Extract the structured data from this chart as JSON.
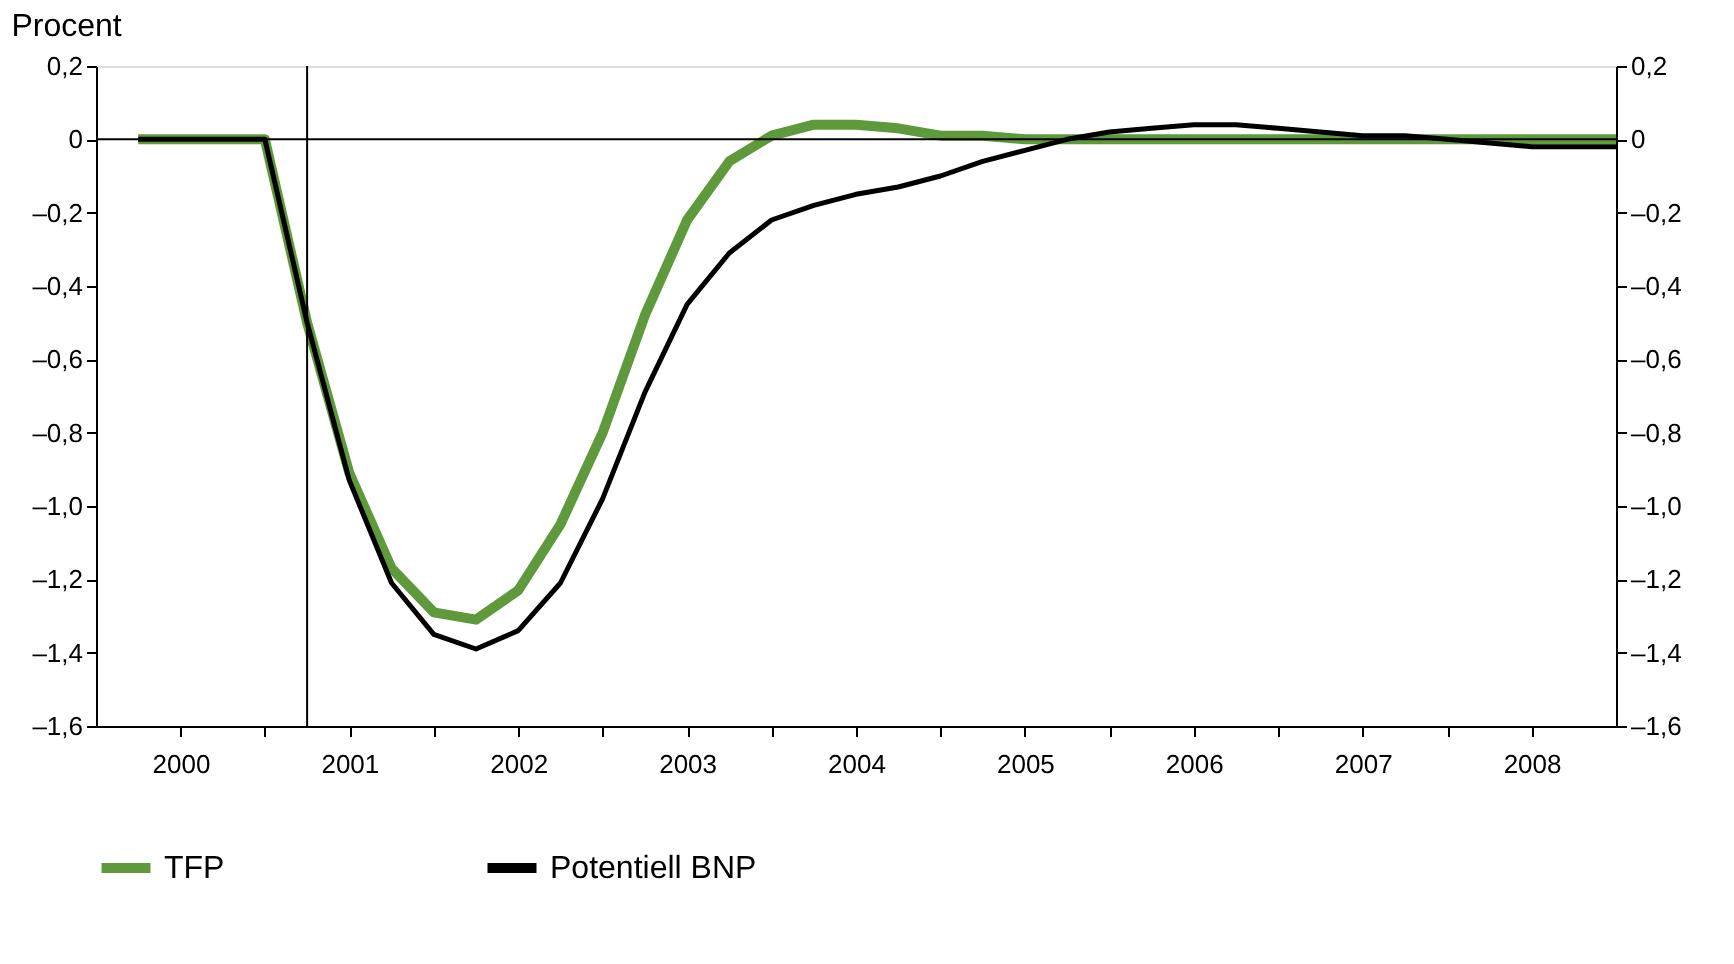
{
  "chart_data": {
    "type": "line",
    "ylabel": "Procent",
    "x": [
      2000.25,
      2000.5,
      2000.75,
      2001,
      2001.25,
      2001.5,
      2001.75,
      2002,
      2002.25,
      2002.5,
      2002.75,
      2003,
      2003.25,
      2003.5,
      2003.75,
      2004,
      2004.25,
      2004.5,
      2004.75,
      2005,
      2005.25,
      2005.5,
      2005.75,
      2006,
      2006.25,
      2006.5,
      2006.75,
      2007,
      2007.25,
      2007.5,
      2007.75,
      2008,
      2008.25,
      2008.5,
      2008.75,
      2009
    ],
    "series": [
      {
        "name": "TFP",
        "color": "#5e9a3b",
        "values": [
          0,
          0,
          0,
          0,
          -0.5,
          -0.91,
          -1.17,
          -1.29,
          -1.31,
          -1.23,
          -1.05,
          -0.8,
          -0.48,
          -0.22,
          -0.06,
          0.01,
          0.04,
          0.04,
          0.03,
          0.01,
          0.01,
          0,
          0,
          0,
          0,
          0,
          0,
          0,
          0,
          0,
          0,
          0,
          0,
          0,
          0,
          0
        ]
      },
      {
        "name": "Potentiell BNP",
        "color": "#000000",
        "values": [
          0,
          0,
          0,
          0,
          -0.5,
          -0.93,
          -1.21,
          -1.35,
          -1.39,
          -1.34,
          -1.21,
          -0.98,
          -0.69,
          -0.45,
          -0.31,
          -0.22,
          -0.18,
          -0.15,
          -0.13,
          -0.1,
          -0.06,
          -0.03,
          0,
          0.02,
          0.03,
          0.04,
          0.04,
          0.03,
          0.02,
          0.01,
          0.01,
          0,
          -0.01,
          -0.02,
          -0.02,
          -0.02
        ]
      }
    ],
    "xlim": [
      2000,
      2009
    ],
    "xticks": [
      {
        "value": 2000.5,
        "label": "2000"
      },
      {
        "value": 2001.5,
        "label": "2001"
      },
      {
        "value": 2002.5,
        "label": "2002"
      },
      {
        "value": 2003.5,
        "label": "2003"
      },
      {
        "value": 2004.5,
        "label": "2004"
      },
      {
        "value": 2005.5,
        "label": "2005"
      },
      {
        "value": 2006.5,
        "label": "2006"
      },
      {
        "value": 2007.5,
        "label": "2007"
      },
      {
        "value": 2008.5,
        "label": "2008"
      },
      {
        "value": 2001,
        "label": null
      },
      {
        "value": 2002,
        "label": null
      },
      {
        "value": 2003,
        "label": null
      },
      {
        "value": 2004,
        "label": null
      },
      {
        "value": 2005,
        "label": null
      },
      {
        "value": 2006,
        "label": null
      },
      {
        "value": 2007,
        "label": null
      },
      {
        "value": 2008,
        "label": null
      }
    ],
    "ylim": [
      -1.6,
      0.2
    ],
    "yticks": [
      {
        "value": 0.2,
        "label": "0,2"
      },
      {
        "value": 0,
        "label": "0"
      },
      {
        "value": -0.2,
        "label": "–0,2"
      },
      {
        "value": -0.4,
        "label": "–0,4"
      },
      {
        "value": -0.6,
        "label": "–0,6"
      },
      {
        "value": -0.8,
        "label": "–0,8"
      },
      {
        "value": -1.0,
        "label": "–1,0"
      },
      {
        "value": -1.2,
        "label": "–1,2"
      },
      {
        "value": -1.4,
        "label": "–1,4"
      },
      {
        "value": -1.6,
        "label": "–1,6"
      }
    ],
    "y2lim": [
      -1.6,
      0.2
    ],
    "y2ticks": [
      {
        "value": 0.2,
        "label": "0,2"
      },
      {
        "value": 0,
        "label": "0"
      },
      {
        "value": -0.2,
        "label": "–0,2"
      },
      {
        "value": -0.4,
        "label": "–0,4"
      },
      {
        "value": -0.6,
        "label": "–0,6"
      },
      {
        "value": -0.8,
        "label": "–0,8"
      },
      {
        "value": -1.0,
        "label": "–1,0"
      },
      {
        "value": -1.2,
        "label": "–1,2"
      },
      {
        "value": -1.4,
        "label": "–1,4"
      },
      {
        "value": -1.6,
        "label": "–1,6"
      }
    ],
    "ref_lines": [
      {
        "axis": "y",
        "value": 0,
        "color": "#000000"
      },
      {
        "axis": "x",
        "value": 2001.25,
        "color": "#000000"
      }
    ],
    "legend": "bottom left",
    "grid": false,
    "marker": "none",
    "line_style": "solid"
  }
}
